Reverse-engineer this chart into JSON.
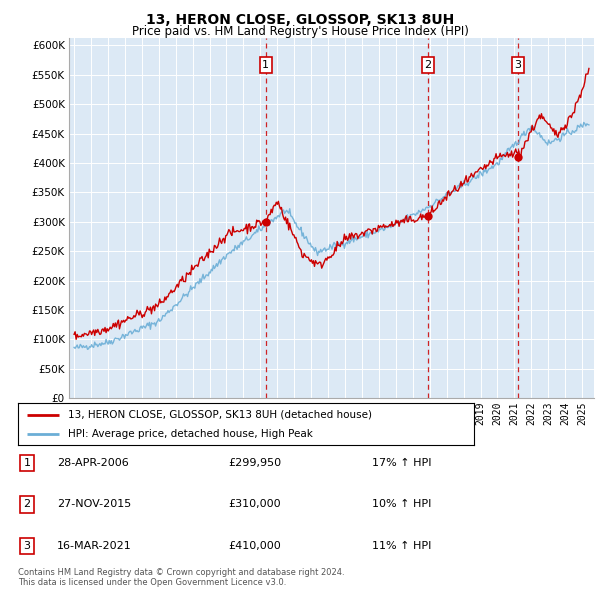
{
  "title": "13, HERON CLOSE, GLOSSOP, SK13 8UH",
  "subtitle": "Price paid vs. HM Land Registry's House Price Index (HPI)",
  "plot_bg_color": "#dce9f5",
  "ytick_values": [
    0,
    50000,
    100000,
    150000,
    200000,
    250000,
    300000,
    350000,
    400000,
    450000,
    500000,
    550000,
    600000
  ],
  "ylim": [
    0,
    612000
  ],
  "hpi_color": "#6baed6",
  "price_color": "#cc0000",
  "vline_color": "#cc0000",
  "marker_border": "#cc0000",
  "purchases": [
    {
      "date_num": 2006.32,
      "price": 299950,
      "label": "1"
    },
    {
      "date_num": 2015.9,
      "price": 310000,
      "label": "2"
    },
    {
      "date_num": 2021.2,
      "price": 410000,
      "label": "3"
    }
  ],
  "legend_entries": [
    "13, HERON CLOSE, GLOSSOP, SK13 8UH (detached house)",
    "HPI: Average price, detached house, High Peak"
  ],
  "table_rows": [
    {
      "num": "1",
      "date": "28-APR-2006",
      "price": "£299,950",
      "hpi": "17% ↑ HPI"
    },
    {
      "num": "2",
      "date": "27-NOV-2015",
      "price": "£310,000",
      "hpi": "10% ↑ HPI"
    },
    {
      "num": "3",
      "date": "16-MAR-2021",
      "price": "£410,000",
      "hpi": "11% ↑ HPI"
    }
  ],
  "footnote": "Contains HM Land Registry data © Crown copyright and database right 2024.\nThis data is licensed under the Open Government Licence v3.0.",
  "xmin": 1994.7,
  "xmax": 2025.7
}
